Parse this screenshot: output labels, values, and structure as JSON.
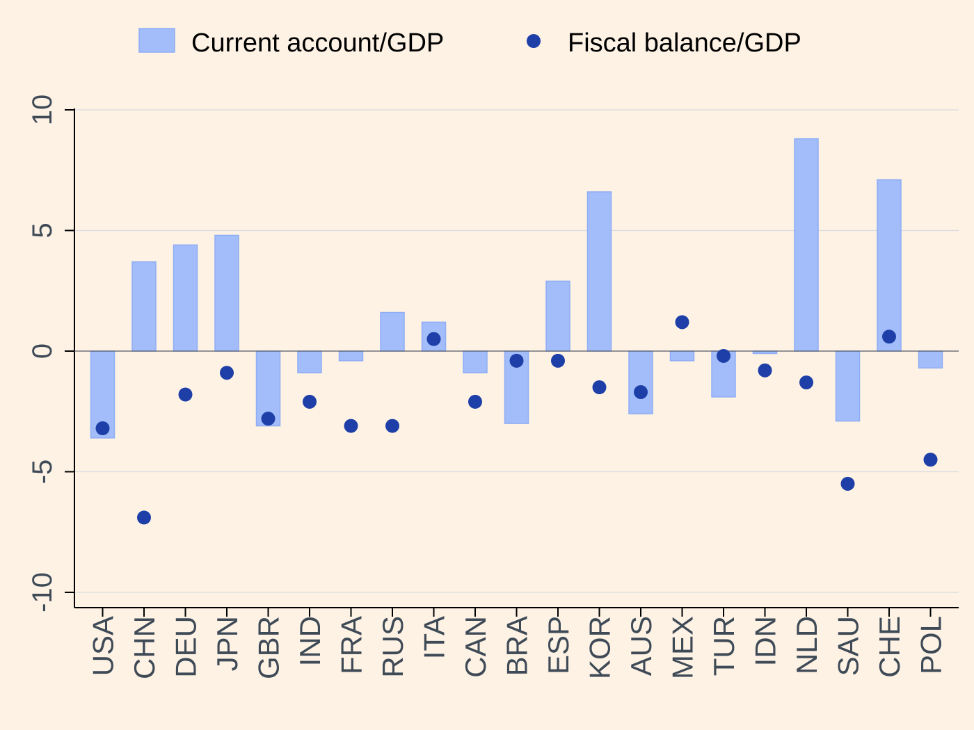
{
  "chart_data": {
    "type": "bar",
    "categories": [
      "USA",
      "CHN",
      "DEU",
      "JPN",
      "GBR",
      "IND",
      "FRA",
      "RUS",
      "ITA",
      "CAN",
      "BRA",
      "ESP",
      "KOR",
      "AUS",
      "MEX",
      "TUR",
      "IDN",
      "NLD",
      "SAU",
      "CHE",
      "POL"
    ],
    "series": [
      {
        "name": "Current account/GDP",
        "type": "bar",
        "color": "#a2bdfa",
        "values": [
          -3.6,
          3.7,
          4.4,
          4.8,
          -3.1,
          -0.9,
          -0.4,
          1.6,
          1.2,
          -0.9,
          -3.0,
          2.9,
          6.6,
          -2.6,
          -0.4,
          -1.9,
          -0.1,
          8.8,
          -2.9,
          7.1,
          -0.7
        ]
      },
      {
        "name": "Fiscal balance/GDP",
        "type": "scatter",
        "color": "#1e3fa8",
        "values": [
          -3.2,
          -6.9,
          -1.8,
          -0.9,
          -2.8,
          -2.1,
          -3.1,
          -3.1,
          0.5,
          -2.1,
          -0.4,
          -0.4,
          -1.5,
          -1.7,
          1.2,
          -0.2,
          -0.8,
          -1.3,
          -5.5,
          0.6,
          -4.5
        ]
      }
    ],
    "yticks": [
      "-10",
      "-5",
      "0",
      "5",
      "10"
    ],
    "ylim": [
      -10.7,
      10
    ],
    "grid": true,
    "legend_position": "top"
  }
}
